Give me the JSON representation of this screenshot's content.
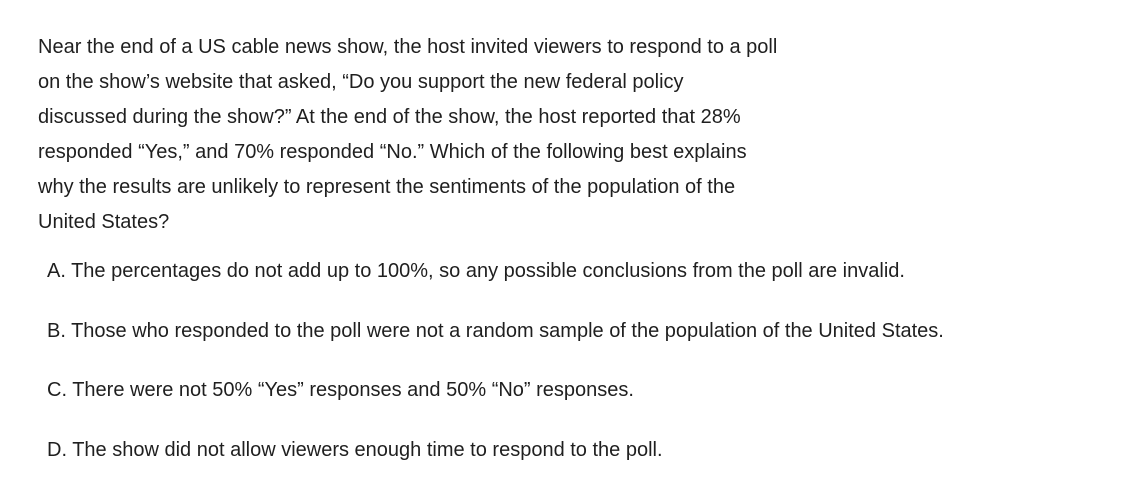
{
  "question": {
    "lines": [
      "Near the end of a US cable news show, the host invited viewers to respond to a poll",
      "on the show’s website that asked, “Do you support the new federal policy",
      "discussed during the show?” At the end of the show, the host reported that 28%",
      "responded “Yes,” and 70% responded “No.” Which of the following best explains",
      "why the results are unlikely to represent the sentiments of the population of the",
      "United States?"
    ]
  },
  "choices": [
    "A. The percentages do not add up to 100%, so any possible conclusions from the poll are invalid.",
    "B. Those who responded to the poll were not a random sample of the population of the United States.",
    "C. There were not 50% “Yes” responses and 50% “No” responses.",
    "D. The show did not allow viewers enough time to respond to the poll."
  ]
}
